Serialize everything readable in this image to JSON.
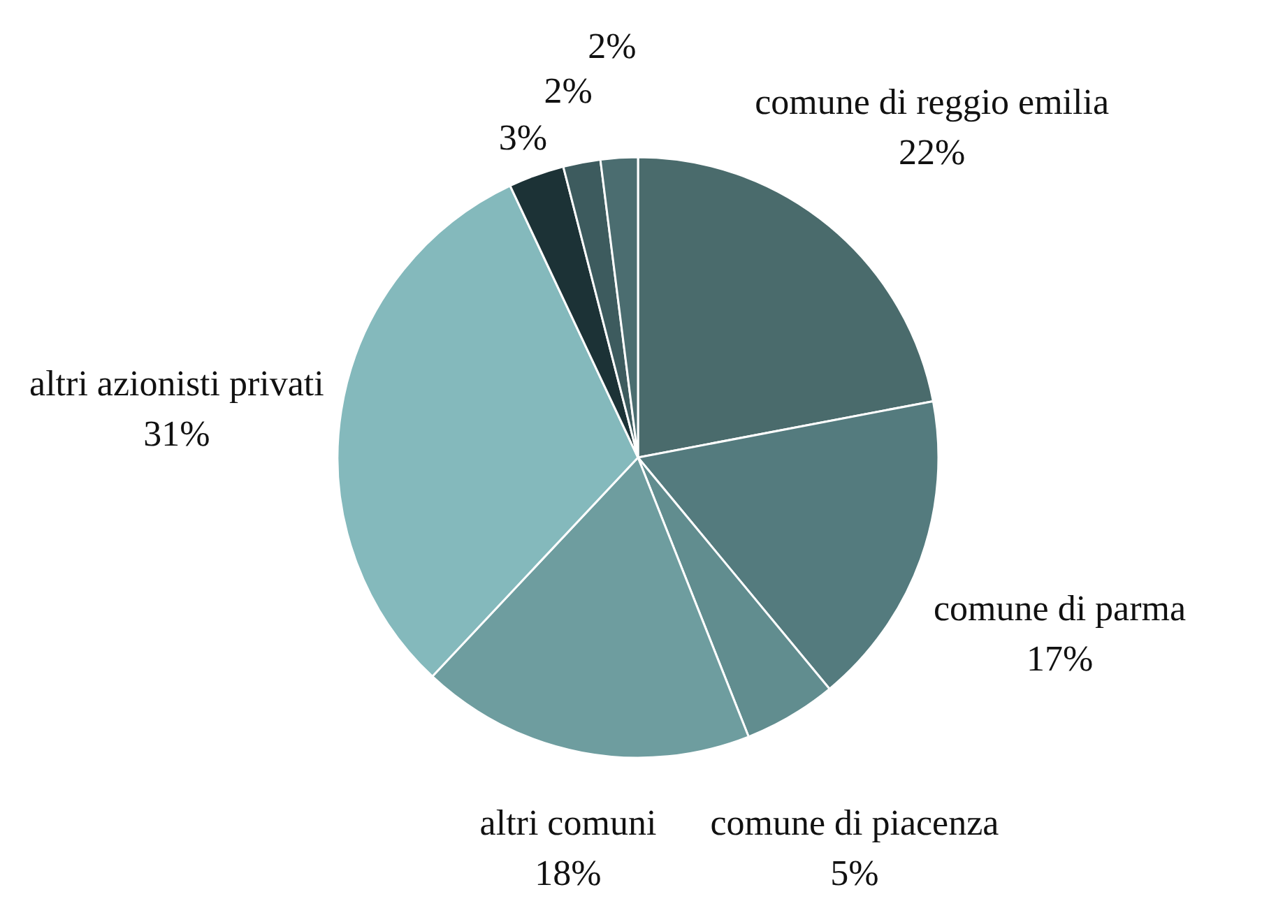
{
  "chart_data": {
    "type": "pie",
    "categories": [
      "comune di reggio emilia",
      "comune di parma",
      "comune di piacenza",
      "altri comuni",
      "altri azionisti privati",
      null,
      null,
      null
    ],
    "values": [
      22,
      17,
      5,
      18,
      31,
      3,
      2,
      2
    ],
    "value_labels": [
      "22%",
      "17%",
      "5%",
      "18%",
      "31%",
      "3%",
      "2%",
      "2%"
    ],
    "colors": [
      "#4a6b6c",
      "#547b7e",
      "#618d8f",
      "#6e9d9f",
      "#84b9bc",
      "#1c3236",
      "#3d5b5e",
      "#4b6d70"
    ]
  }
}
